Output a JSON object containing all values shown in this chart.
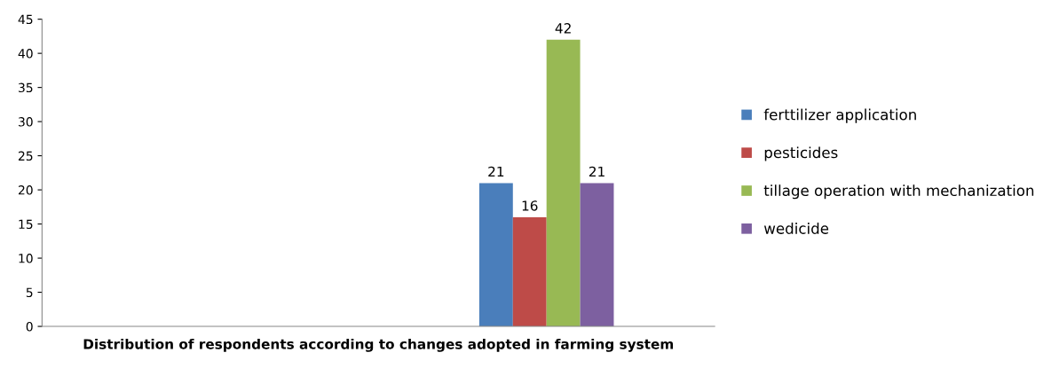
{
  "chart_data": {
    "type": "bar",
    "categories": [
      "Distribution of respondents according to changes adopted in farming system"
    ],
    "series": [
      {
        "name": "ferttilizer application",
        "color": "#4a7ebb",
        "values": [
          21
        ]
      },
      {
        "name": "pesticides",
        "color": "#be4b48",
        "values": [
          16
        ]
      },
      {
        "name": "tillage operation with mechanization",
        "color": "#98b954",
        "values": [
          42
        ]
      },
      {
        "name": "wedicide",
        "color": "#7d60a0",
        "values": [
          21
        ]
      }
    ],
    "ylim": [
      0,
      45
    ],
    "yticks": [
      0,
      5,
      10,
      15,
      20,
      25,
      30,
      35,
      40,
      45
    ],
    "grid": false,
    "legend": "right",
    "data_labels": true
  }
}
